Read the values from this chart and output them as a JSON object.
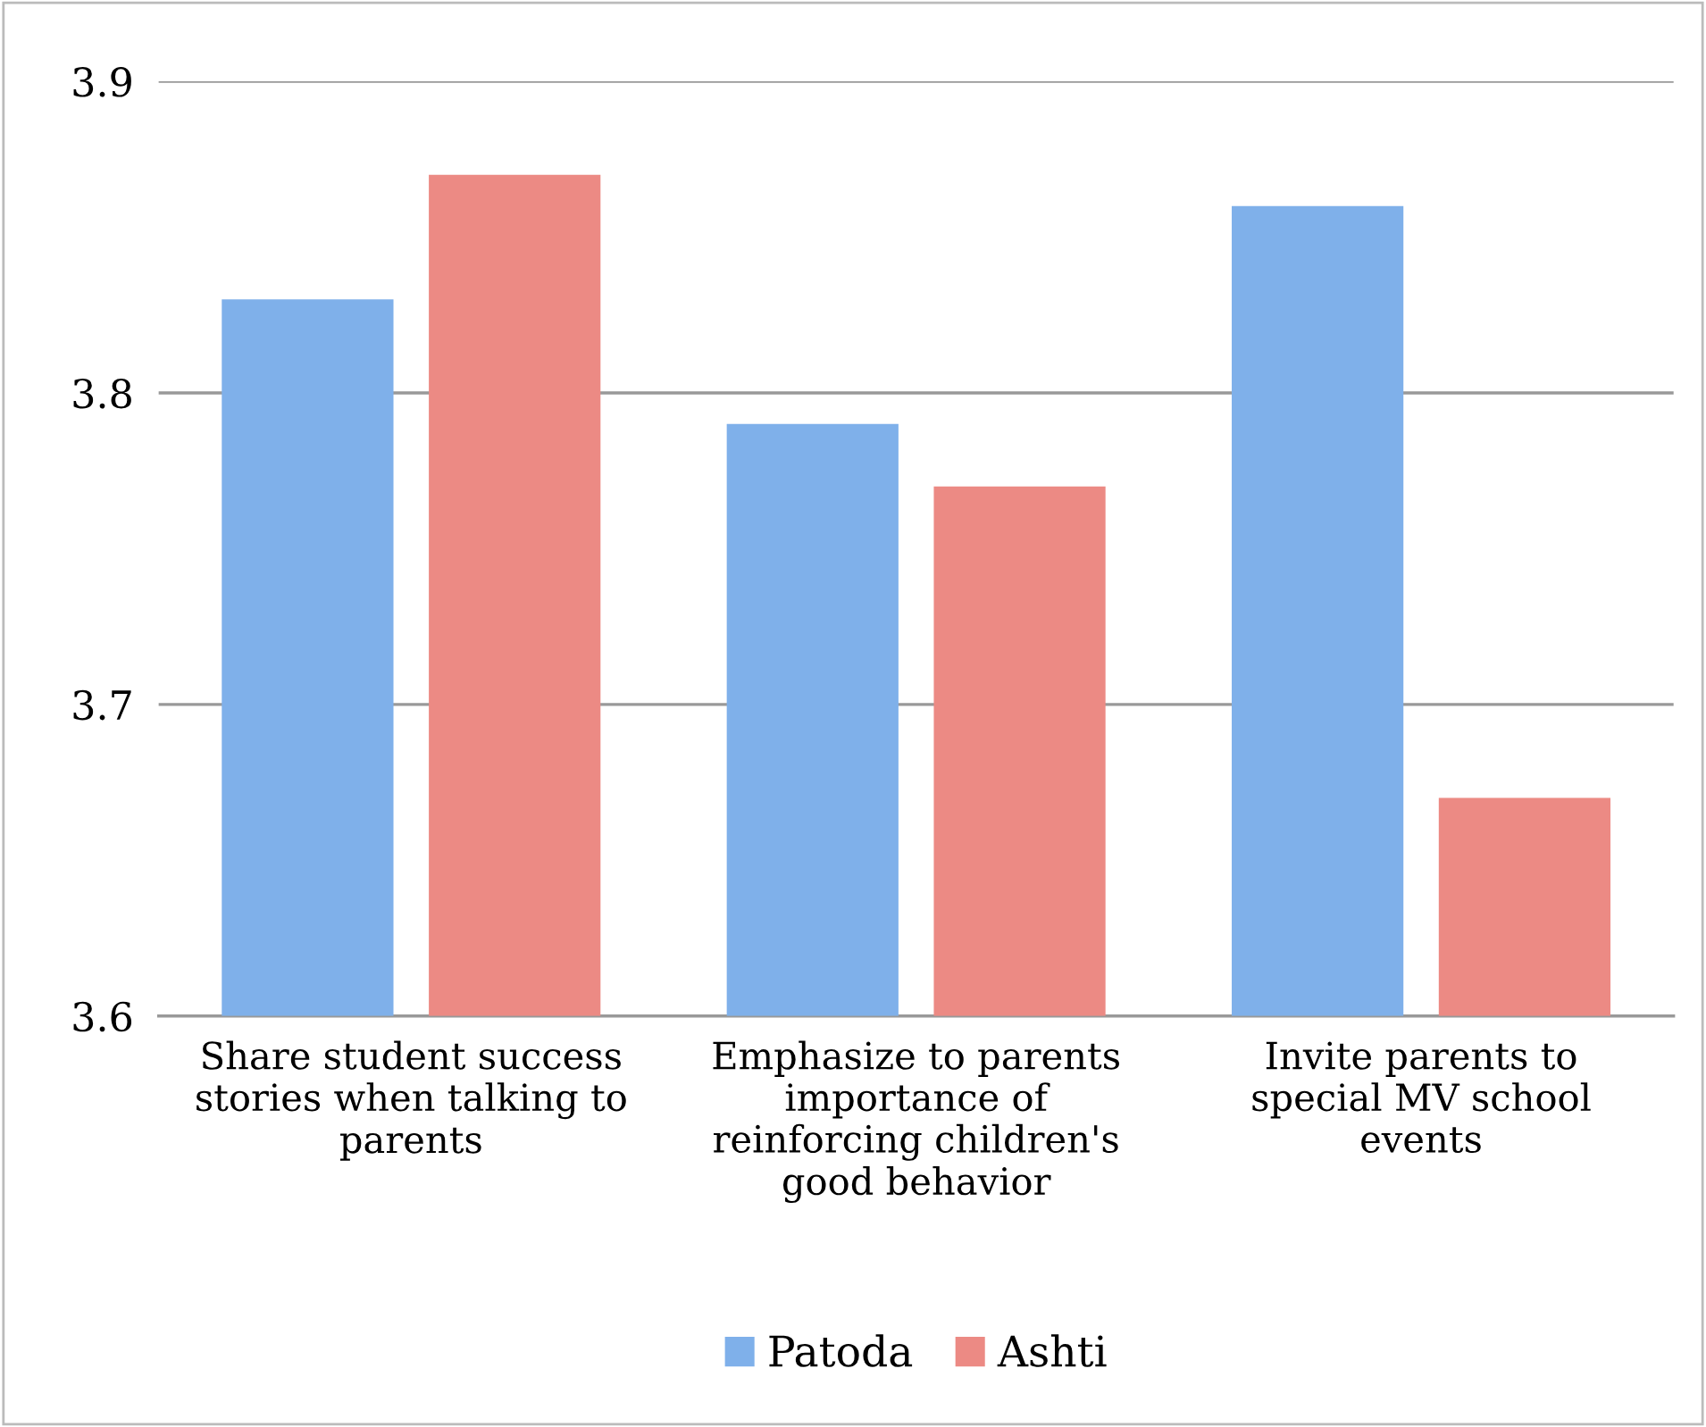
{
  "chart_data": {
    "type": "bar",
    "categories": [
      "Share student success stories when talking to parents",
      "Emphasize to parents importance of reinforcing children's good behavior",
      "Invite parents to special MV school events"
    ],
    "series": [
      {
        "name": "Patoda",
        "color": "#7fb0ea",
        "values": [
          3.83,
          3.79,
          3.86
        ]
      },
      {
        "name": "Ashti",
        "color": "#ec8a84",
        "values": [
          3.87,
          3.77,
          3.67
        ]
      }
    ],
    "ylim": [
      3.6,
      3.9
    ],
    "yticks": [
      {
        "value": 3.6,
        "label": "3.6"
      },
      {
        "value": 3.7,
        "label": "3.7"
      },
      {
        "value": 3.8,
        "label": "3.8"
      },
      {
        "value": 3.9,
        "label": "3.9"
      }
    ],
    "grid": "y",
    "legend": "bottom"
  }
}
